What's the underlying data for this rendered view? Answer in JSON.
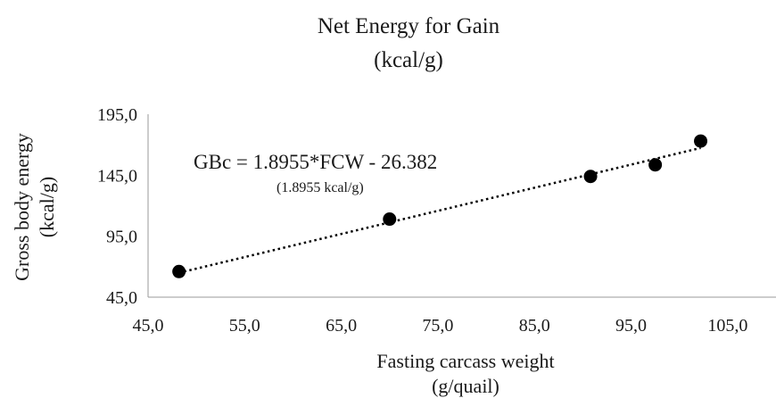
{
  "chart_data": {
    "type": "scatter",
    "title_line1": "Net Energy for Gain",
    "title_line2": "(kcal/g)",
    "xlabel_line1": "Fasting carcass weight",
    "xlabel_line2": "(g/quail)",
    "ylabel_line1": "Gross body energy",
    "ylabel_line2": "(kcal/g)",
    "xlim": [
      45,
      110
    ],
    "ylim": [
      45,
      195
    ],
    "x_ticks": [
      45,
      55,
      65,
      75,
      85,
      95,
      105
    ],
    "x_tick_labels": [
      "45,0",
      "55,0",
      "65,0",
      "75,0",
      "85,0",
      "95,0",
      "105,0"
    ],
    "y_ticks": [
      45,
      95,
      145,
      195
    ],
    "y_tick_labels": [
      "45,0",
      "95,0",
      "145,0",
      "195,0"
    ],
    "grid": false,
    "series": [
      {
        "points": [
          {
            "x": 48.2,
            "y": 66.0
          },
          {
            "x": 70.0,
            "y": 109.0
          },
          {
            "x": 90.8,
            "y": 144.0
          },
          {
            "x": 97.5,
            "y": 153.5
          },
          {
            "x": 102.2,
            "y": 173.0
          }
        ]
      }
    ],
    "trendline": {
      "type": "linear",
      "slope": 1.8955,
      "intercept": -26.382,
      "x_range": [
        48.2,
        102.2
      ],
      "style": "dotted"
    },
    "annotation_equation": "GBc = 1.8955*FCW - 26.382",
    "annotation_slope": "(1.8955 kcal/g)"
  }
}
